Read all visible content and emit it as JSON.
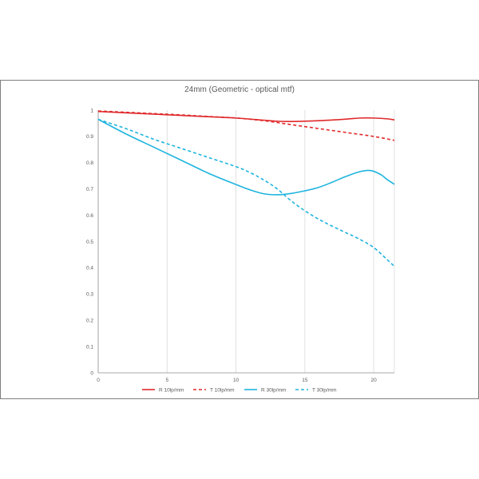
{
  "chart_data": {
    "type": "line",
    "title": "24mm  (Geometric - optical mtf)",
    "xlabel": "",
    "ylabel": "",
    "xlim": [
      0,
      21.5
    ],
    "ylim": [
      0,
      1
    ],
    "xticks": [
      0,
      5,
      10,
      15,
      20
    ],
    "yticks": [
      0,
      0.1,
      0.2,
      0.3,
      0.4,
      0.5,
      0.6,
      0.7,
      0.8,
      0.9,
      1
    ],
    "ytick_labels": [
      "0",
      "0.1",
      "0.2",
      "0.3",
      "0.4",
      "0.5",
      "0.6",
      "0.7",
      "0.8",
      "0.9",
      "1"
    ],
    "xtick_labels": [
      "0",
      "5",
      "10",
      "15",
      "20"
    ],
    "grid": "vertical",
    "legend_position": "bottom",
    "series": [
      {
        "name": "R 10lp/mm",
        "color": "#e0292b",
        "dash": "solid",
        "x": [
          0,
          2,
          4,
          6,
          8,
          10,
          12,
          13,
          14,
          16,
          18,
          19,
          20,
          21,
          21.5
        ],
        "y": [
          0.995,
          0.99,
          0.985,
          0.98,
          0.975,
          0.97,
          0.962,
          0.958,
          0.957,
          0.96,
          0.966,
          0.97,
          0.97,
          0.967,
          0.963
        ]
      },
      {
        "name": "T 10lp/mm",
        "color": "#e0292b",
        "dash": "dashed",
        "x": [
          0,
          2,
          4,
          6,
          8,
          10,
          12,
          14,
          16,
          18,
          20,
          21.5
        ],
        "y": [
          0.997,
          0.992,
          0.987,
          0.982,
          0.976,
          0.97,
          0.96,
          0.945,
          0.93,
          0.915,
          0.9,
          0.885
        ]
      },
      {
        "name": "R 30lp/mm",
        "color": "#1eb4de",
        "dash": "solid",
        "x": [
          0,
          2,
          4,
          6,
          8,
          10,
          11,
          12,
          13,
          14,
          15,
          16,
          17,
          18,
          19,
          19.8,
          20.5,
          21,
          21.5
        ],
        "y": [
          0.965,
          0.91,
          0.86,
          0.81,
          0.76,
          0.717,
          0.697,
          0.682,
          0.678,
          0.683,
          0.693,
          0.706,
          0.726,
          0.748,
          0.766,
          0.77,
          0.755,
          0.735,
          0.718
        ]
      },
      {
        "name": "T 30lp/mm",
        "color": "#1eb4de",
        "dash": "dashed",
        "x": [
          0,
          2,
          4,
          6,
          8,
          10,
          11,
          12,
          13,
          14,
          15,
          16,
          17,
          18,
          19,
          20,
          21,
          21.5
        ],
        "y": [
          0.965,
          0.93,
          0.89,
          0.855,
          0.82,
          0.785,
          0.763,
          0.735,
          0.7,
          0.655,
          0.617,
          0.585,
          0.558,
          0.533,
          0.508,
          0.477,
          0.43,
          0.405
        ]
      }
    ]
  }
}
